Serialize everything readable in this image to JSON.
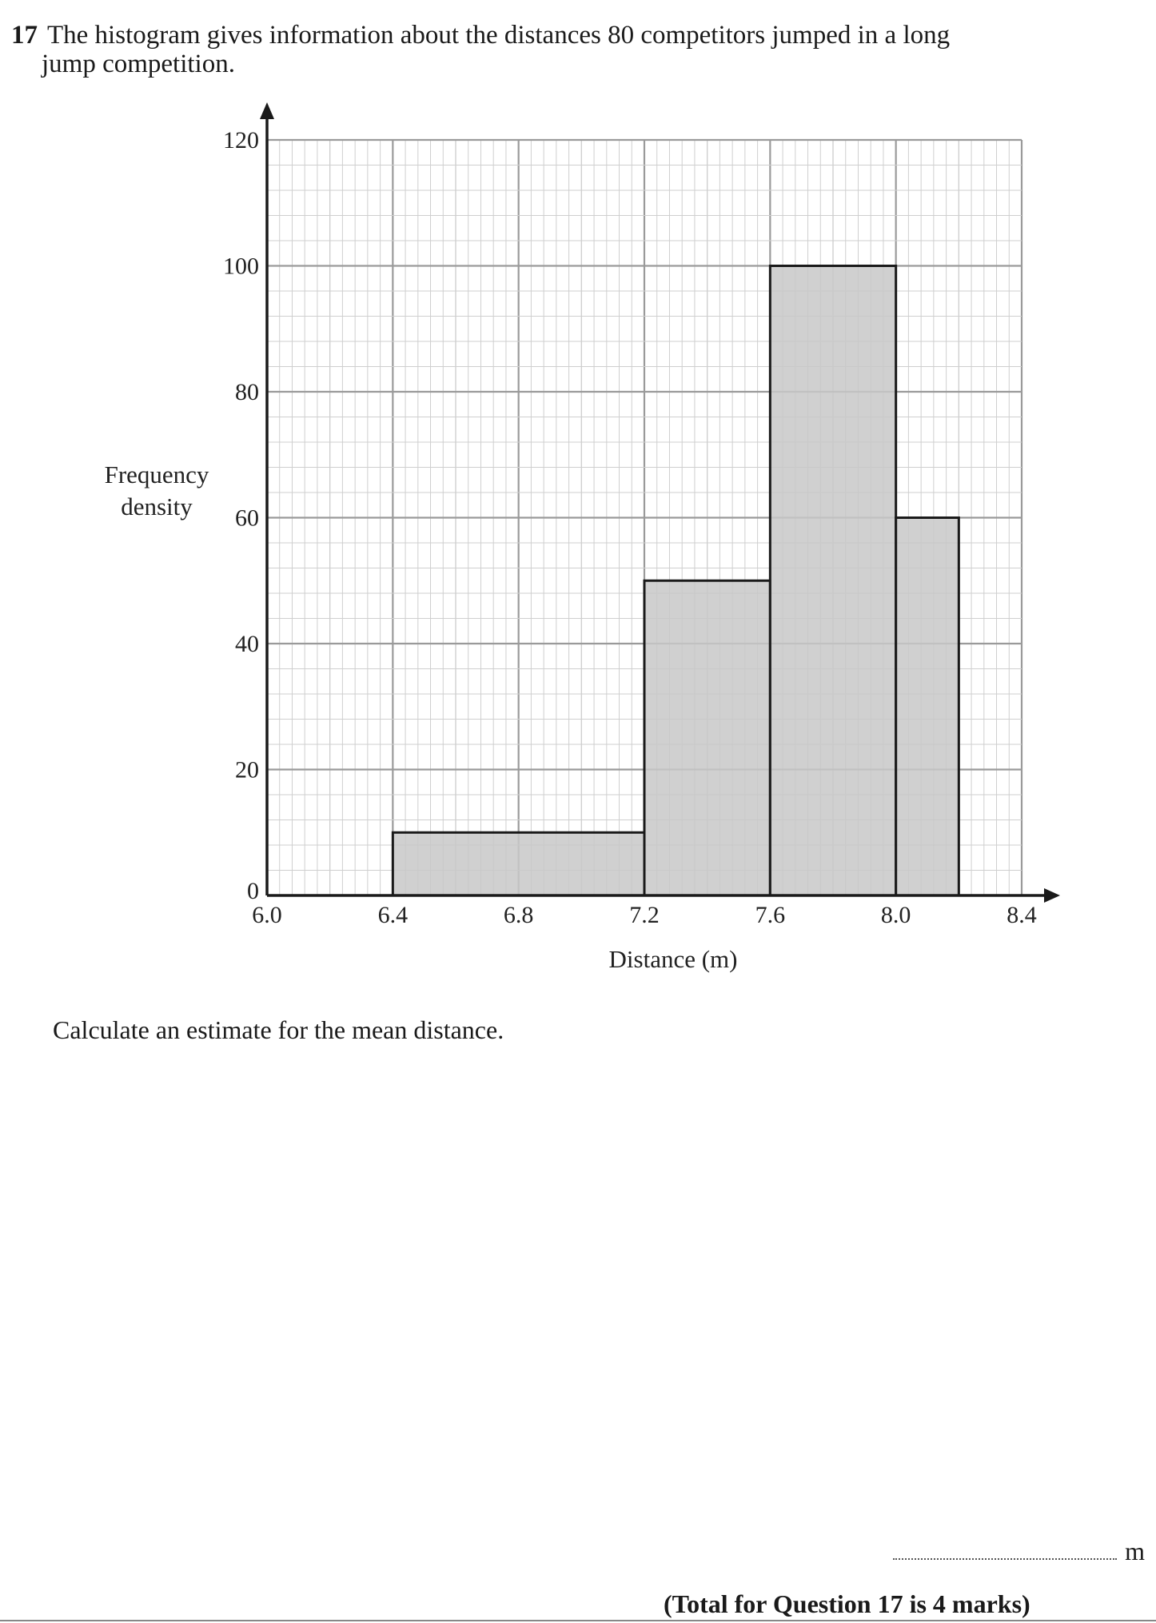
{
  "question": {
    "number": "17",
    "line1": "The histogram gives information about the distances 80 competitors jumped in a long",
    "line2": "jump competition.",
    "prompt": "Calculate an estimate for the mean distance.",
    "unit": "m",
    "total": "(Total for Question 17 is 4 marks)"
  },
  "chart_data": {
    "type": "bar",
    "title": "",
    "xlabel": "Distance (m)",
    "ylabel_lines": [
      "Frequency",
      "density"
    ],
    "xlim": [
      6.0,
      8.4
    ],
    "ylim": [
      0,
      120
    ],
    "x_ticks": [
      "6.0",
      "6.4",
      "6.8",
      "7.2",
      "7.6",
      "8.0",
      "8.4"
    ],
    "y_ticks": [
      "0",
      "20",
      "40",
      "60",
      "80",
      "100",
      "120"
    ],
    "grid": true,
    "bars": [
      {
        "x_start": 6.4,
        "x_end": 7.2,
        "value": 10
      },
      {
        "x_start": 7.2,
        "x_end": 7.6,
        "value": 50
      },
      {
        "x_start": 7.6,
        "x_end": 8.0,
        "value": 100
      },
      {
        "x_start": 8.0,
        "x_end": 8.2,
        "value": 60
      }
    ],
    "colors": {
      "bar_fill": "#c8c8c8",
      "grid_minor": "#cfcfcf",
      "grid_major": "#9a9a9a",
      "axis": "#1a1a1a"
    }
  }
}
